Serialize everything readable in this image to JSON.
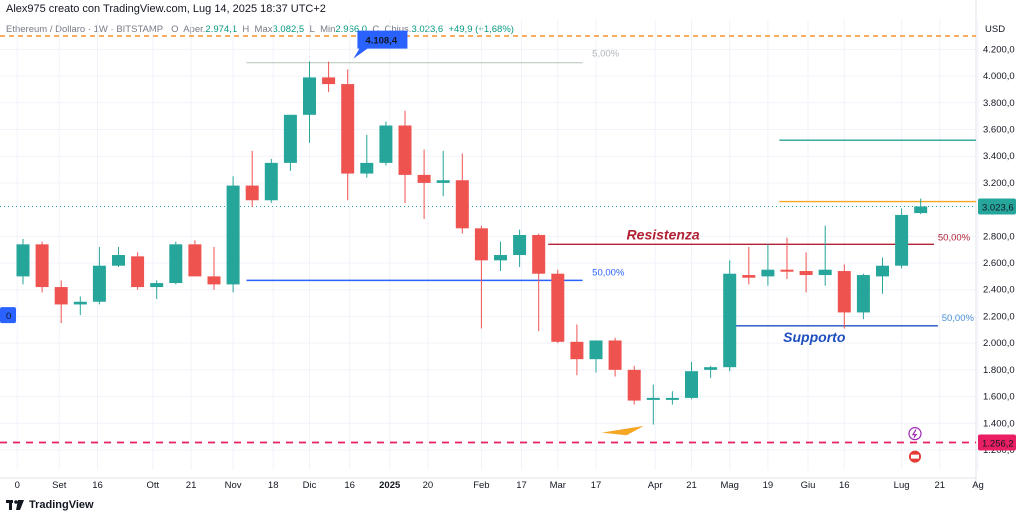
{
  "header": {
    "attribution": "Alex975 creato con TradingView.com, Lug 14, 2025 18:37 UTC+2",
    "legend": {
      "symbol": "Ethereum / Dollaro · 1W · BITSTAMP",
      "open_label": "O",
      "open_prefix": "Aper.",
      "open": "2.974,1",
      "high_label": "H",
      "high_prefix": "Max",
      "high": "3.082,5",
      "low_label": "L",
      "low_prefix": "Min",
      "low": "2.966,0",
      "close_label": "C",
      "close_prefix": "Chius.",
      "close": "3.023,6",
      "change": "+49,9 (+1,68%)"
    }
  },
  "footer": {
    "brand": "TradingView"
  },
  "colors": {
    "up": "#26a69a",
    "down": "#ef5350",
    "resistance": "#b22234",
    "support": "#1f4fbf",
    "fib": "#2962ff",
    "teal_line": "#2aa198",
    "orange_line": "#f5a623",
    "dashed_orange": "#f57c00",
    "dashed_pink": "#e91e63"
  },
  "chart_data": {
    "type": "candlestick",
    "title": "Ethereum / Dollaro · 1W · BITSTAMP",
    "currency": "USD",
    "ylim": [
      1050,
      4420
    ],
    "y_ticks": [
      "4.200,0",
      "4.000,0",
      "3.800,0",
      "3.600,0",
      "3.400,0",
      "3.200,0",
      "2.800,0",
      "2.600,0",
      "2.400,0",
      "2.200,0",
      "2.000,0",
      "1.800,0",
      "1.600,0",
      "1.400,0",
      "1.200,0"
    ],
    "y_tick_values": [
      4200,
      4000,
      3800,
      3600,
      3400,
      3200,
      2800,
      2600,
      2400,
      2200,
      2000,
      1800,
      1600,
      1400,
      1200
    ],
    "x_ticks": [
      "0",
      "Set",
      "16",
      "Ott",
      "21",
      "Nov",
      "18",
      "Dic",
      "16",
      "2025",
      "20",
      "Feb",
      "17",
      "Mar",
      "17",
      "Apr",
      "21",
      "Mag",
      "19",
      "Giu",
      "16",
      "Lug",
      "21",
      "Ag"
    ],
    "x_tick_index": [
      -0.3,
      1.9,
      3.9,
      6.8,
      8.8,
      11.0,
      13.1,
      15.0,
      17.1,
      19.2,
      21.2,
      24.0,
      26.1,
      28.0,
      30.0,
      33.1,
      35.0,
      37.0,
      39.0,
      41.1,
      43.0,
      46.0,
      48.0,
      50.0
    ],
    "grid": true,
    "candles": [
      {
        "o": 2500,
        "h": 2780,
        "l": 2440,
        "c": 2740
      },
      {
        "o": 2740,
        "h": 2760,
        "l": 2380,
        "c": 2420
      },
      {
        "o": 2420,
        "h": 2470,
        "l": 2150,
        "c": 2290
      },
      {
        "o": 2290,
        "h": 2350,
        "l": 2210,
        "c": 2310
      },
      {
        "o": 2310,
        "h": 2720,
        "l": 2290,
        "c": 2580
      },
      {
        "o": 2580,
        "h": 2720,
        "l": 2570,
        "c": 2660
      },
      {
        "o": 2650,
        "h": 2680,
        "l": 2400,
        "c": 2420
      },
      {
        "o": 2420,
        "h": 2470,
        "l": 2330,
        "c": 2450
      },
      {
        "o": 2450,
        "h": 2760,
        "l": 2440,
        "c": 2740
      },
      {
        "o": 2740,
        "h": 2770,
        "l": 2500,
        "c": 2500
      },
      {
        "o": 2500,
        "h": 2720,
        "l": 2400,
        "c": 2440
      },
      {
        "o": 2440,
        "h": 3250,
        "l": 2380,
        "c": 3180
      },
      {
        "o": 3180,
        "h": 3440,
        "l": 3020,
        "c": 3070
      },
      {
        "o": 3070,
        "h": 3380,
        "l": 3050,
        "c": 3350
      },
      {
        "o": 3350,
        "h": 3710,
        "l": 3290,
        "c": 3710
      },
      {
        "o": 3710,
        "h": 4110,
        "l": 3500,
        "c": 3990
      },
      {
        "o": 3990,
        "h": 4108,
        "l": 3880,
        "c": 3940
      },
      {
        "o": 3940,
        "h": 4050,
        "l": 3070,
        "c": 3270
      },
      {
        "o": 3270,
        "h": 3560,
        "l": 3240,
        "c": 3350
      },
      {
        "o": 3350,
        "h": 3660,
        "l": 3330,
        "c": 3630
      },
      {
        "o": 3630,
        "h": 3740,
        "l": 3050,
        "c": 3260
      },
      {
        "o": 3260,
        "h": 3450,
        "l": 2930,
        "c": 3200
      },
      {
        "o": 3200,
        "h": 3440,
        "l": 3100,
        "c": 3220
      },
      {
        "o": 3220,
        "h": 3420,
        "l": 2820,
        "c": 2860
      },
      {
        "o": 2860,
        "h": 2880,
        "l": 2110,
        "c": 2620
      },
      {
        "o": 2620,
        "h": 2760,
        "l": 2540,
        "c": 2660
      },
      {
        "o": 2660,
        "h": 2850,
        "l": 2570,
        "c": 2810
      },
      {
        "o": 2810,
        "h": 2820,
        "l": 2090,
        "c": 2520
      },
      {
        "o": 2520,
        "h": 2550,
        "l": 2000,
        "c": 2010
      },
      {
        "o": 2010,
        "h": 2140,
        "l": 1760,
        "c": 1880
      },
      {
        "o": 1880,
        "h": 2020,
        "l": 1780,
        "c": 2020
      },
      {
        "o": 2020,
        "h": 2040,
        "l": 1750,
        "c": 1800
      },
      {
        "o": 1800,
        "h": 1830,
        "l": 1540,
        "c": 1570
      },
      {
        "o": 1580,
        "h": 1690,
        "l": 1390,
        "c": 1590
      },
      {
        "o": 1590,
        "h": 1640,
        "l": 1540,
        "c": 1590
      },
      {
        "o": 1590,
        "h": 1860,
        "l": 1580,
        "c": 1790
      },
      {
        "o": 1800,
        "h": 1830,
        "l": 1740,
        "c": 1820
      },
      {
        "o": 1820,
        "h": 2620,
        "l": 1790,
        "c": 2520
      },
      {
        "o": 2510,
        "h": 2720,
        "l": 2440,
        "c": 2490
      },
      {
        "o": 2500,
        "h": 2740,
        "l": 2430,
        "c": 2550
      },
      {
        "o": 2550,
        "h": 2790,
        "l": 2480,
        "c": 2540
      },
      {
        "o": 2540,
        "h": 2680,
        "l": 2380,
        "c": 2510
      },
      {
        "o": 2510,
        "h": 2880,
        "l": 2430,
        "c": 2550
      },
      {
        "o": 2540,
        "h": 2590,
        "l": 2110,
        "c": 2230
      },
      {
        "o": 2230,
        "h": 2520,
        "l": 2180,
        "c": 2510
      },
      {
        "o": 2500,
        "h": 2640,
        "l": 2370,
        "c": 2580
      },
      {
        "o": 2580,
        "h": 3010,
        "l": 2560,
        "c": 2960
      },
      {
        "o": 2974.1,
        "h": 3082.5,
        "l": 2966.0,
        "c": 3023.6
      }
    ],
    "price_labels": {
      "current": "3.023,6",
      "low_line": "1.256,2",
      "high_tag": "4.108,4",
      "left_tag": "0"
    },
    "annotations": {
      "resistance": "Resistenza",
      "support": "Supporto",
      "fib_top": "5,00%",
      "fib_mid": "50,00%",
      "fib_res": "50,00%",
      "fib_sup": "50,00%"
    }
  }
}
